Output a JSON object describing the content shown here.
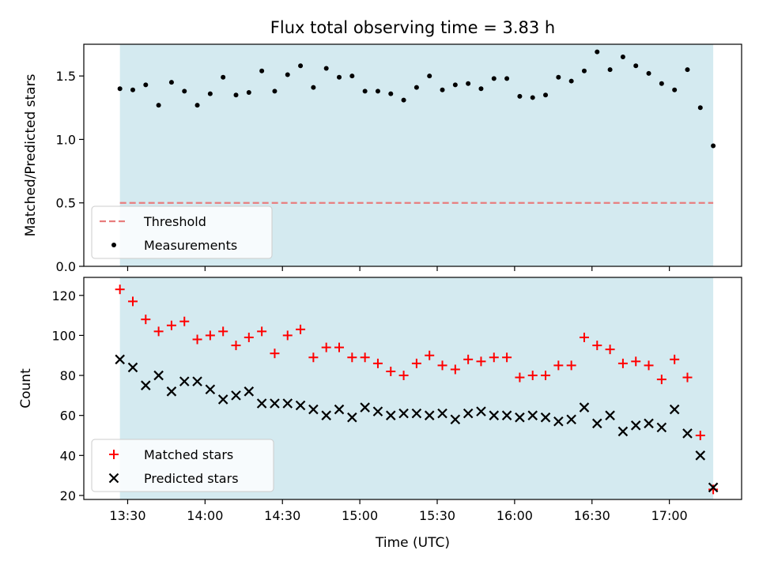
{
  "figure": {
    "title": "Flux total observing time = 3.83 h",
    "xlabel": "Time (UTC)"
  },
  "chart_data": [
    {
      "type": "scatter",
      "ylabel": "Matched/Predicted stars",
      "ylim": [
        0.0,
        1.75
      ],
      "yticks": [
        0.0,
        0.5,
        1.0,
        1.5
      ],
      "yticklabels": [
        "0.0",
        "0.5",
        "1.0",
        "1.5"
      ],
      "xlim": [
        "13:13",
        "17:28"
      ],
      "xticks": [
        "13:30",
        "14:00",
        "14:30",
        "15:00",
        "15:30",
        "16:00",
        "16:30",
        "17:00"
      ],
      "shaded_span": [
        "13:27",
        "17:17"
      ],
      "shaded_color": "#d4eaf0",
      "threshold": {
        "name": "Threshold",
        "value": 0.5,
        "color": "#e87d7d"
      },
      "legend": {
        "placement": "lower-left",
        "entries": [
          "Threshold",
          "Measurements"
        ]
      },
      "series": [
        {
          "name": "Measurements",
          "color": "#000000",
          "x": [
            "13:27",
            "13:32",
            "13:37",
            "13:42",
            "13:47",
            "13:52",
            "13:57",
            "14:02",
            "14:07",
            "14:12",
            "14:17",
            "14:22",
            "14:27",
            "14:32",
            "14:37",
            "14:42",
            "14:47",
            "14:52",
            "14:57",
            "15:02",
            "15:07",
            "15:12",
            "15:17",
            "15:22",
            "15:27",
            "15:32",
            "15:37",
            "15:42",
            "15:47",
            "15:52",
            "15:57",
            "16:02",
            "16:07",
            "16:12",
            "16:17",
            "16:22",
            "16:27",
            "16:32",
            "16:37",
            "16:42",
            "16:47",
            "16:52",
            "16:57",
            "17:02",
            "17:07",
            "17:12",
            "17:17"
          ],
          "y": [
            1.4,
            1.39,
            1.43,
            1.27,
            1.45,
            1.38,
            1.27,
            1.36,
            1.49,
            1.35,
            1.37,
            1.54,
            1.38,
            1.51,
            1.58,
            1.41,
            1.56,
            1.49,
            1.5,
            1.38,
            1.38,
            1.36,
            1.31,
            1.41,
            1.5,
            1.39,
            1.43,
            1.44,
            1.4,
            1.48,
            1.48,
            1.34,
            1.33,
            1.35,
            1.49,
            1.46,
            1.54,
            1.69,
            1.55,
            1.65,
            1.58,
            1.52,
            1.44,
            1.39,
            1.55,
            1.25,
            0.95
          ]
        }
      ]
    },
    {
      "type": "scatter",
      "ylabel": "Count",
      "ylim": [
        18,
        129
      ],
      "yticks": [
        20,
        40,
        60,
        80,
        100,
        120
      ],
      "yticklabels": [
        "20",
        "40",
        "60",
        "80",
        "100",
        "120"
      ],
      "xlim": [
        "13:13",
        "17:28"
      ],
      "xticks": [
        "13:30",
        "14:00",
        "14:30",
        "15:00",
        "15:30",
        "16:00",
        "16:30",
        "17:00"
      ],
      "xticklabels": [
        "13:30",
        "14:00",
        "14:30",
        "15:00",
        "15:30",
        "16:00",
        "16:30",
        "17:00"
      ],
      "shaded_span": [
        "13:27",
        "17:17"
      ],
      "shaded_color": "#d4eaf0",
      "legend": {
        "placement": "lower-left",
        "entries": [
          "Matched stars",
          "Predicted stars"
        ]
      },
      "series": [
        {
          "name": "Matched stars",
          "marker": "plus",
          "color": "#ff0000",
          "x": [
            "13:27",
            "13:32",
            "13:37",
            "13:42",
            "13:47",
            "13:52",
            "13:57",
            "14:02",
            "14:07",
            "14:12",
            "14:17",
            "14:22",
            "14:27",
            "14:32",
            "14:37",
            "14:42",
            "14:47",
            "14:52",
            "14:57",
            "15:02",
            "15:07",
            "15:12",
            "15:17",
            "15:22",
            "15:27",
            "15:32",
            "15:37",
            "15:42",
            "15:47",
            "15:52",
            "15:57",
            "16:02",
            "16:07",
            "16:12",
            "16:17",
            "16:22",
            "16:27",
            "16:32",
            "16:37",
            "16:42",
            "16:47",
            "16:52",
            "16:57",
            "17:02",
            "17:07",
            "17:12",
            "17:17"
          ],
          "y": [
            123,
            117,
            108,
            102,
            105,
            107,
            98,
            100,
            102,
            95,
            99,
            102,
            91,
            100,
            103,
            89,
            94,
            94,
            89,
            89,
            86,
            82,
            80,
            86,
            90,
            85,
            83,
            88,
            87,
            89,
            89,
            79,
            80,
            80,
            85,
            85,
            99,
            95,
            93,
            86,
            87,
            85,
            78,
            88,
            79,
            50,
            23
          ]
        },
        {
          "name": "Predicted stars",
          "marker": "x",
          "color": "#000000",
          "x": [
            "13:27",
            "13:32",
            "13:37",
            "13:42",
            "13:47",
            "13:52",
            "13:57",
            "14:02",
            "14:07",
            "14:12",
            "14:17",
            "14:22",
            "14:27",
            "14:32",
            "14:37",
            "14:42",
            "14:47",
            "14:52",
            "14:57",
            "15:02",
            "15:07",
            "15:12",
            "15:17",
            "15:22",
            "15:27",
            "15:32",
            "15:37",
            "15:42",
            "15:47",
            "15:52",
            "15:57",
            "16:02",
            "16:07",
            "16:12",
            "16:17",
            "16:22",
            "16:27",
            "16:32",
            "16:37",
            "16:42",
            "16:47",
            "16:52",
            "16:57",
            "17:02",
            "17:07",
            "17:12",
            "17:17"
          ],
          "y": [
            88,
            84,
            75,
            80,
            72,
            77,
            77,
            73,
            68,
            70,
            72,
            66,
            66,
            66,
            65,
            63,
            60,
            63,
            59,
            64,
            62,
            60,
            61,
            61,
            60,
            61,
            58,
            61,
            62,
            60,
            60,
            59,
            60,
            59,
            57,
            58,
            64,
            56,
            60,
            52,
            55,
            56,
            54,
            63,
            51,
            40,
            24
          ]
        }
      ]
    }
  ]
}
